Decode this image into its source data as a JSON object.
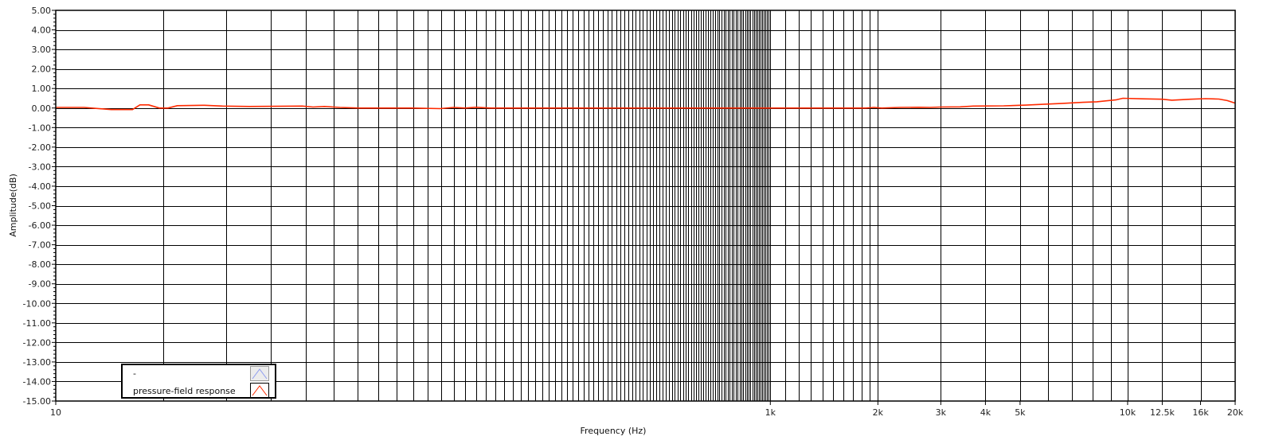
{
  "chart_data": {
    "type": "line",
    "title": "",
    "xlabel": "Frequency (Hz)",
    "ylabel": "Amplitude(dB)",
    "xscale": "log",
    "xlim": [
      10,
      20000
    ],
    "ylim": [
      -15,
      5
    ],
    "grid": true,
    "legend_placement": "bottom-left",
    "x_ticks": [
      {
        "value": 10,
        "label": "10"
      },
      {
        "value": 1000,
        "label": "1k"
      },
      {
        "value": 2000,
        "label": "2k"
      },
      {
        "value": 3000,
        "label": "3k"
      },
      {
        "value": 4000,
        "label": "4k"
      },
      {
        "value": 5000,
        "label": "5k"
      },
      {
        "value": 10000,
        "label": "10k"
      },
      {
        "value": 12500,
        "label": "12.5k"
      },
      {
        "value": 16000,
        "label": "16k"
      },
      {
        "value": 20000,
        "label": "20k"
      }
    ],
    "y_ticks": [
      "5.00",
      "4.00",
      "3.00",
      "2.00",
      "1.00",
      "0.00",
      "-1.00",
      "-2.00",
      "-3.00",
      "-4.00",
      "-5.00",
      "-6.00",
      "-7.00",
      "-8.00",
      "-9.00",
      "-10.00",
      "-11.00",
      "-12.00",
      "-13.00",
      "-14.00",
      "-15.00"
    ],
    "series": [
      {
        "name": "-",
        "color": "#8e9cf0",
        "x": [],
        "y": []
      },
      {
        "name": "pressure-field response",
        "color": "#ff2a00",
        "x": [
          10,
          12,
          14.3,
          16.4,
          17.2,
          18.2,
          19.5,
          20.6,
          21.9,
          26.1,
          29.3,
          34.8,
          49,
          52.5,
          56.5,
          62.4,
          71,
          100,
          119,
          130,
          140,
          150,
          165,
          200,
          400,
          800,
          1000,
          1500,
          1850,
          1950,
          2050,
          2300,
          2600,
          2800,
          3000,
          3400,
          3700,
          4500,
          5200,
          5800,
          6500,
          7500,
          8200,
          9300,
          9700,
          11000,
          12500,
          13300,
          15000,
          16500,
          18000,
          19000,
          20000
        ],
        "y": [
          0.03,
          0.03,
          -0.08,
          -0.08,
          0.16,
          0.16,
          0.0,
          0.0,
          0.12,
          0.14,
          0.1,
          0.08,
          0.1,
          0.05,
          0.08,
          0.03,
          0.0,
          0.0,
          -0.03,
          0.03,
          0.0,
          0.04,
          0.0,
          0.0,
          0.0,
          0.0,
          0.0,
          0.0,
          0.0,
          0.03,
          0.0,
          0.03,
          0.04,
          0.03,
          0.05,
          0.06,
          0.1,
          0.11,
          0.15,
          0.19,
          0.23,
          0.29,
          0.32,
          0.42,
          0.5,
          0.47,
          0.45,
          0.4,
          0.45,
          0.48,
          0.46,
          0.38,
          0.25
        ]
      }
    ]
  }
}
